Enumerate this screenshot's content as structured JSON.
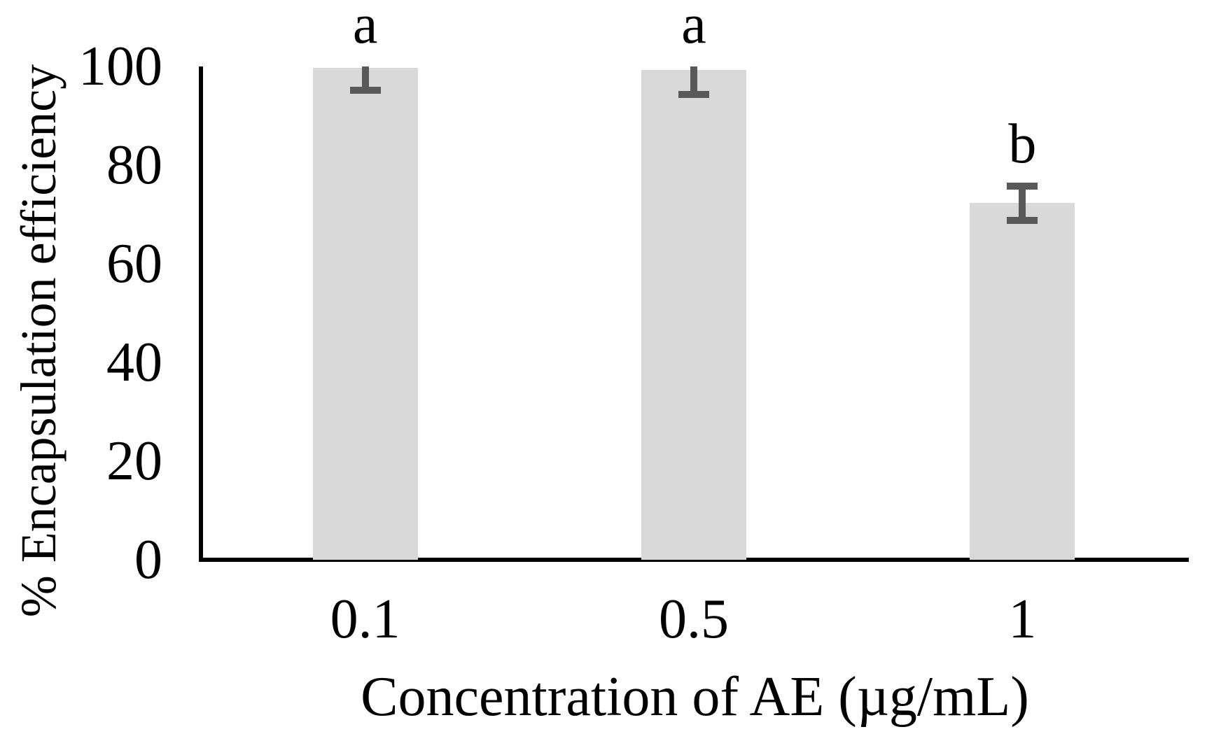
{
  "chart_data": {
    "type": "bar",
    "title": "",
    "xlabel": "Concentration of AE (µg/mL)",
    "ylabel": "% Encapsulation efficiency",
    "categories": [
      "0.1",
      "0.5",
      "1"
    ],
    "values": [
      99.7,
      99.3,
      72.3
    ],
    "error_bars": [
      4.5,
      5,
      3.5
    ],
    "significance_labels": [
      "a",
      "a",
      "b"
    ],
    "yticks": [
      100,
      80,
      60,
      40,
      20,
      0
    ],
    "ylim": [
      0,
      100
    ],
    "grid": false,
    "legend": "none",
    "bar_color": "#d9d9d9",
    "error_bar_color": "#595959",
    "axis_color": "#000000",
    "text_color": "#000000"
  }
}
